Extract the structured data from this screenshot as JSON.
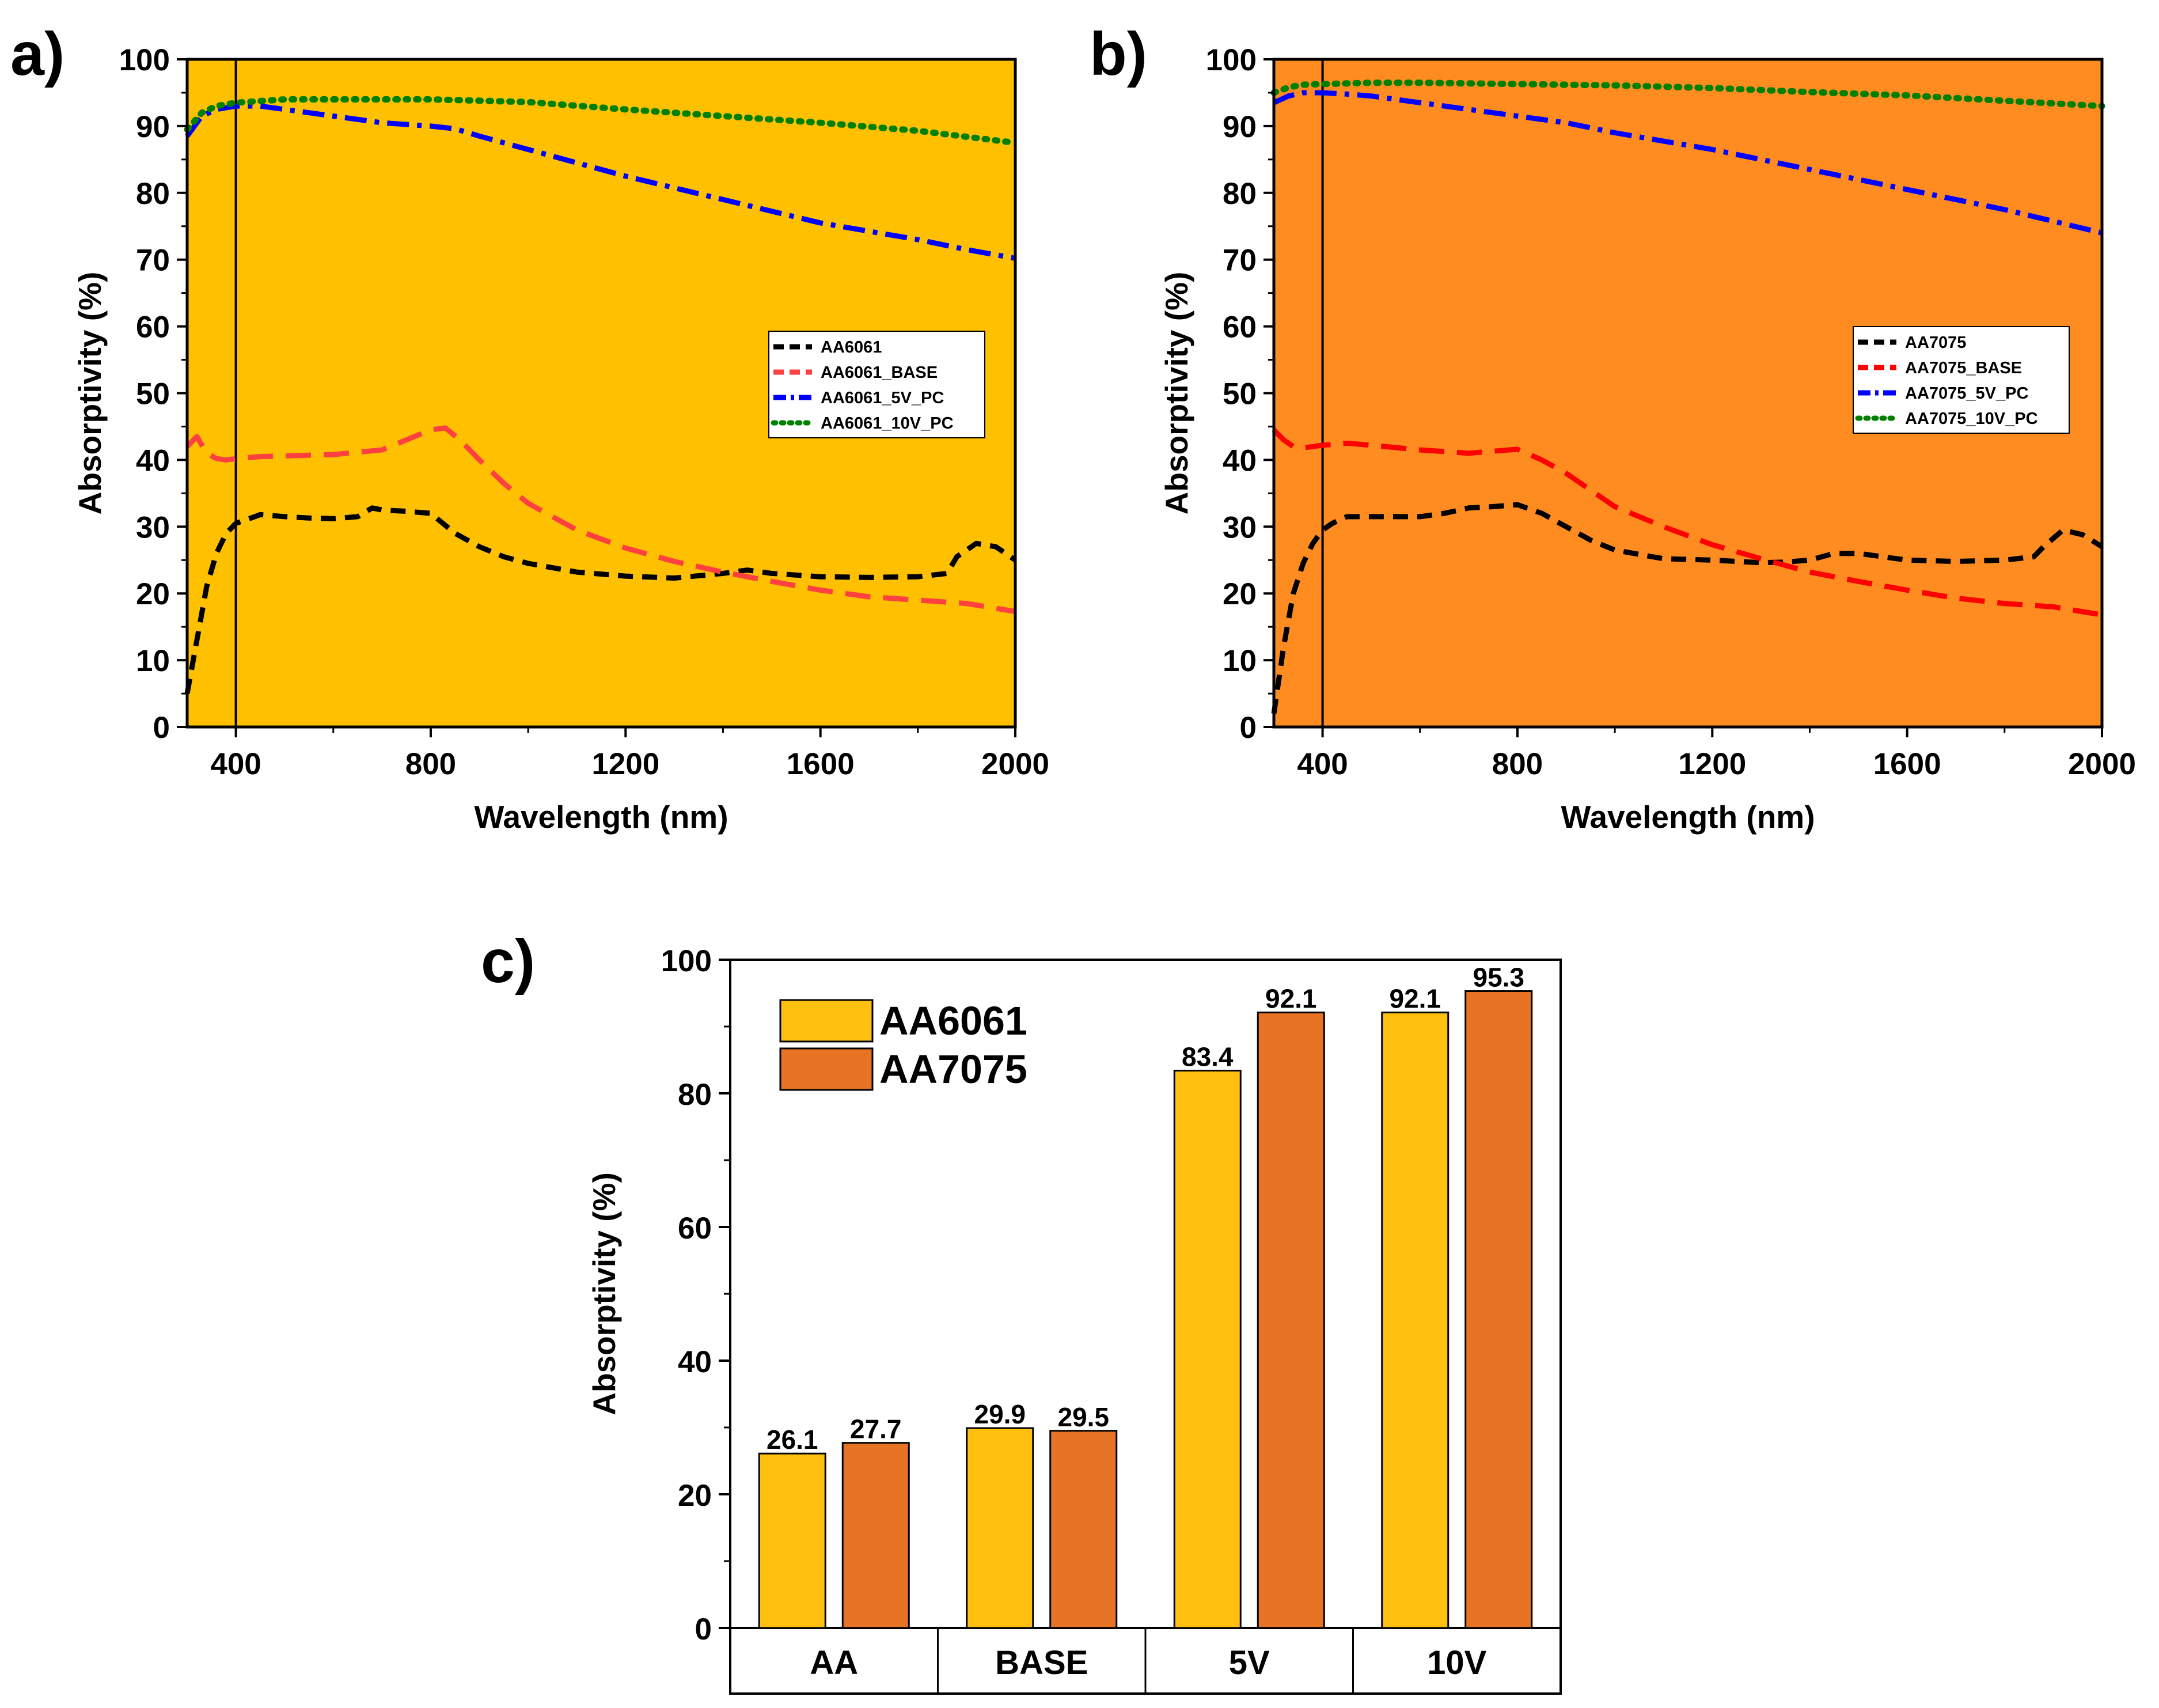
{
  "chart_data": [
    {
      "type": "line",
      "panel": "a)",
      "background": "#FFC000",
      "xlabel": "Wavelength (nm)",
      "ylabel": "Absorptivity (%)",
      "xlim": [
        300,
        2000
      ],
      "ylim": [
        0,
        100
      ],
      "xticks": [
        400,
        800,
        1200,
        1600,
        2000
      ],
      "yticks": [
        0,
        10,
        20,
        30,
        40,
        50,
        60,
        70,
        80,
        90,
        100
      ],
      "vline_x": 400,
      "legend_position": "center-right",
      "series": [
        {
          "name": "AA6061",
          "color": "#000000",
          "style": "dash",
          "x": [
            300,
            320,
            340,
            360,
            380,
            400,
            420,
            450,
            500,
            550,
            600,
            650,
            680,
            700,
            750,
            800,
            850,
            900,
            950,
            1000,
            1100,
            1200,
            1300,
            1400,
            1450,
            1500,
            1600,
            1700,
            1800,
            1860,
            1880,
            1920,
            1960,
            2000
          ],
          "y": [
            5,
            13,
            21,
            26,
            29,
            30.5,
            31,
            31.8,
            31.5,
            31.3,
            31.2,
            31.5,
            32.8,
            32.5,
            32.3,
            32,
            29,
            27,
            25.5,
            24.5,
            23.2,
            22.6,
            22.3,
            23,
            23.5,
            23,
            22.5,
            22.4,
            22.5,
            23,
            25.5,
            27.5,
            27,
            25
          ]
        },
        {
          "name": "AA6061_BASE",
          "color": "#FF4040",
          "style": "longdash",
          "x": [
            300,
            320,
            340,
            360,
            380,
            400,
            450,
            500,
            600,
            700,
            750,
            800,
            830,
            860,
            900,
            950,
            1000,
            1100,
            1200,
            1300,
            1400,
            1500,
            1600,
            1700,
            1800,
            1900,
            2000
          ],
          "y": [
            42,
            43.5,
            41,
            40.2,
            40,
            40.2,
            40.5,
            40.6,
            40.8,
            41.5,
            43,
            44.5,
            44.8,
            43,
            40,
            36.5,
            33.5,
            29.5,
            26.8,
            24.8,
            23.2,
            21.8,
            20.5,
            19.5,
            19,
            18.5,
            17.3
          ]
        },
        {
          "name": "AA6061_5V_PC",
          "color": "#0000FF",
          "style": "dashdot",
          "x": [
            300,
            330,
            360,
            400,
            450,
            500,
            600,
            700,
            800,
            850,
            900,
            1000,
            1200,
            1400,
            1600,
            1800,
            1900,
            2000
          ],
          "y": [
            88.5,
            91.5,
            92.5,
            93,
            93,
            92.5,
            91.5,
            90.5,
            90,
            89.6,
            88.5,
            86.5,
            82.5,
            79,
            75.5,
            73,
            71.5,
            70.2
          ]
        },
        {
          "name": "AA6061_10V_PC",
          "color": "#008000",
          "style": "dot",
          "x": [
            300,
            330,
            360,
            400,
            500,
            600,
            800,
            1000,
            1200,
            1400,
            1600,
            1800,
            2000
          ],
          "y": [
            89.5,
            92,
            93,
            93.5,
            94,
            94,
            94,
            93.6,
            92.5,
            91.5,
            90.5,
            89.3,
            87.5
          ]
        }
      ]
    },
    {
      "type": "line",
      "panel": "b)",
      "background": "#FF8C21",
      "xlabel": "Wavelength (nm)",
      "ylabel": "Absorptivity (%)",
      "xlim": [
        300,
        2000
      ],
      "ylim": [
        0,
        100
      ],
      "xticks": [
        400,
        800,
        1200,
        1600,
        2000
      ],
      "yticks": [
        0,
        10,
        20,
        30,
        40,
        50,
        60,
        70,
        80,
        90,
        100
      ],
      "vline_x": 400,
      "legend_position": "center-right",
      "series": [
        {
          "name": "AA7075",
          "color": "#000000",
          "style": "dash",
          "x": [
            300,
            320,
            340,
            360,
            380,
            400,
            420,
            450,
            500,
            600,
            650,
            700,
            750,
            800,
            850,
            900,
            950,
            1000,
            1100,
            1200,
            1300,
            1350,
            1400,
            1450,
            1500,
            1600,
            1700,
            1800,
            1860,
            1880,
            1920,
            1960,
            2000
          ],
          "y": [
            2,
            12,
            20,
            24.5,
            27.5,
            29.5,
            30.5,
            31.5,
            31.5,
            31.5,
            32,
            32.8,
            33,
            33.3,
            32,
            30,
            28,
            26.5,
            25.2,
            25,
            24.6,
            24.7,
            25,
            26,
            26,
            25,
            24.8,
            25,
            25.5,
            27,
            29.5,
            28.8,
            27
          ]
        },
        {
          "name": "AA7075_BASE",
          "color": "#FF0000",
          "style": "longdash",
          "x": [
            300,
            320,
            340,
            360,
            380,
            400,
            450,
            500,
            600,
            700,
            750,
            800,
            850,
            900,
            950,
            1000,
            1100,
            1200,
            1300,
            1400,
            1500,
            1600,
            1700,
            1800,
            1900,
            2000
          ],
          "y": [
            44.5,
            43,
            42,
            41.8,
            42,
            42.2,
            42.5,
            42.2,
            41.5,
            41,
            41.3,
            41.6,
            40,
            38,
            35.5,
            33,
            30,
            27.3,
            25.2,
            23.2,
            21.8,
            20.5,
            19.3,
            18.5,
            18,
            16.8
          ]
        },
        {
          "name": "AA7075_5V_PC",
          "color": "#0000FF",
          "style": "dashdot",
          "x": [
            300,
            330,
            360,
            400,
            450,
            500,
            600,
            700,
            800,
            900,
            1000,
            1200,
            1400,
            1600,
            1800,
            2000
          ],
          "y": [
            93.5,
            94.5,
            95,
            95,
            94.8,
            94.5,
            93.5,
            92.5,
            91.5,
            90.5,
            89,
            86.5,
            83.5,
            80.5,
            77.5,
            74
          ]
        },
        {
          "name": "AA7075_10V_PC",
          "color": "#008000",
          "style": "dot",
          "x": [
            300,
            330,
            360,
            400,
            500,
            600,
            800,
            1000,
            1200,
            1400,
            1600,
            1800,
            2000
          ],
          "y": [
            95,
            95.8,
            96.2,
            96.3,
            96.5,
            96.5,
            96.3,
            96.1,
            95.7,
            95.1,
            94.6,
            93.8,
            93
          ]
        }
      ]
    },
    {
      "type": "bar",
      "panel": "c)",
      "ylabel": "Absorptivity (%)",
      "ylim": [
        0,
        100
      ],
      "yticks": [
        0,
        20,
        40,
        60,
        80,
        100
      ],
      "categories": [
        "AA",
        "BASE",
        "5V",
        "10V"
      ],
      "legend_position": "top-left",
      "series": [
        {
          "name": "AA6061",
          "color": "#FFC010",
          "values": [
            26.1,
            29.9,
            83.4,
            92.1
          ],
          "labels": [
            "26.1",
            "29.9",
            "83.4",
            "92.1"
          ]
        },
        {
          "name": "AA7075",
          "color": "#E77424",
          "values": [
            27.7,
            29.5,
            92.1,
            95.3
          ],
          "labels": [
            "27.7",
            "29.5",
            "92.1",
            "95.3"
          ]
        }
      ]
    }
  ]
}
